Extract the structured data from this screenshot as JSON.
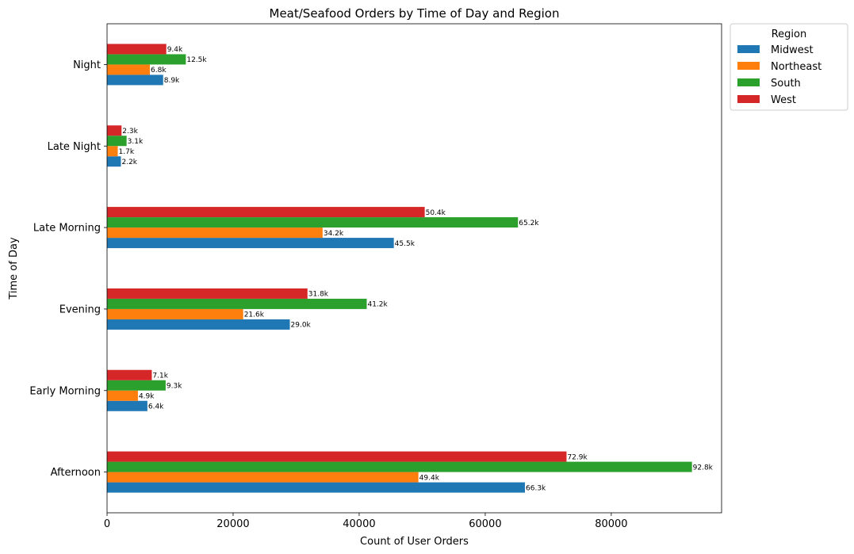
{
  "chart_data": {
    "type": "bar",
    "orientation": "horizontal",
    "title": "Meat/Seafood Orders by Time of Day and Region",
    "xlabel": "Count of User Orders",
    "ylabel": "Time of Day",
    "xlim": [
      0,
      97500
    ],
    "xticks": [
      0,
      20000,
      40000,
      60000,
      80000
    ],
    "categories": [
      "Afternoon",
      "Early Morning",
      "Evening",
      "Late Morning",
      "Late Night",
      "Night"
    ],
    "series": [
      {
        "name": "Midwest",
        "color": "#1f77b4",
        "values": [
          66300,
          6400,
          29000,
          45500,
          2200,
          8900
        ],
        "labels": [
          "66.3k",
          "6.4k",
          "29.0k",
          "45.5k",
          "2.2k",
          "8.9k"
        ]
      },
      {
        "name": "Northeast",
        "color": "#ff7f0e",
        "values": [
          49400,
          4900,
          21600,
          34200,
          1700,
          6800
        ],
        "labels": [
          "49.4k",
          "4.9k",
          "21.6k",
          "34.2k",
          "1.7k",
          "6.8k"
        ]
      },
      {
        "name": "South",
        "color": "#2ca02c",
        "values": [
          92800,
          9300,
          41200,
          65200,
          3100,
          12500
        ],
        "labels": [
          "92.8k",
          "9.3k",
          "41.2k",
          "65.2k",
          "3.1k",
          "12.5k"
        ]
      },
      {
        "name": "West",
        "color": "#d62728",
        "values": [
          72900,
          7100,
          31800,
          50400,
          2300,
          9400
        ],
        "labels": [
          "72.9k",
          "7.1k",
          "31.8k",
          "50.4k",
          "2.3k",
          "9.4k"
        ]
      }
    ],
    "legend": {
      "title": "Region",
      "placement": "outside-top-right"
    },
    "grid": false
  }
}
